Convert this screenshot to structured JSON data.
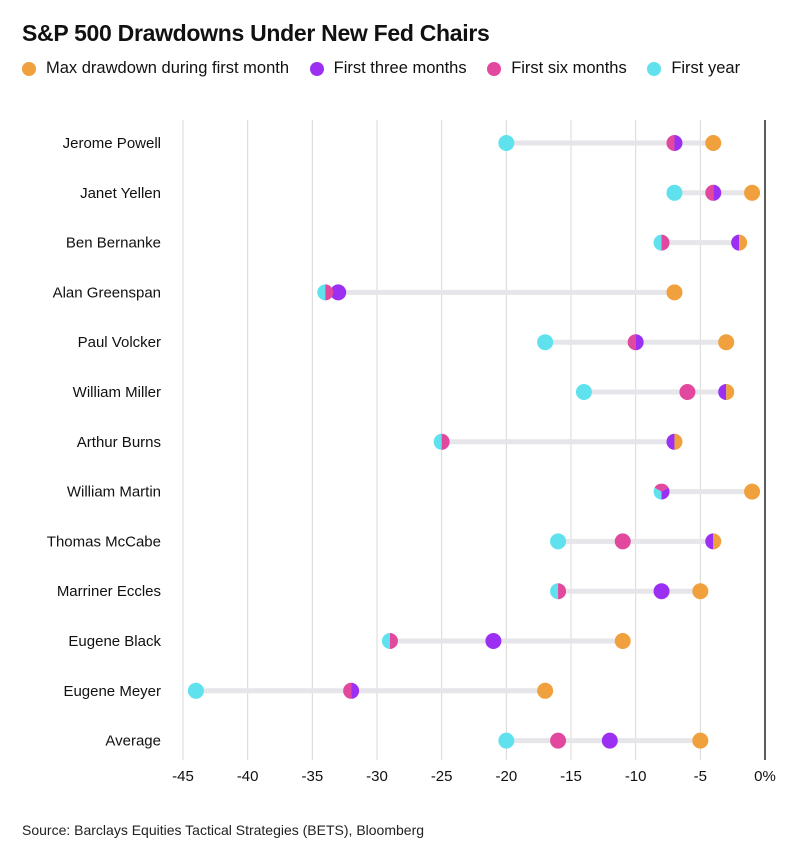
{
  "chart_data": {
    "type": "dot-range",
    "title": "S&P 500 Drawdowns Under New Fed Chairs",
    "xlim": [
      -45,
      0
    ],
    "xticks": [
      -45,
      -40,
      -35,
      -30,
      -25,
      -20,
      -15,
      -10,
      -5,
      0
    ],
    "xtick_labels": [
      "-45",
      "-40",
      "-35",
      "-30",
      "-25",
      "-20",
      "-15",
      "-10",
      "-5",
      "0%"
    ],
    "grid": "vertical",
    "legend_placement": "top",
    "categories": [
      "Jerome Powell",
      "Janet Yellen",
      "Ben Bernanke",
      "Alan Greenspan",
      "Paul Volcker",
      "William Miller",
      "Arthur Burns",
      "William Martin",
      "Thomas McCabe",
      "Marriner Eccles",
      "Eugene Black",
      "Eugene Meyer",
      "Average"
    ],
    "series": [
      {
        "name": "Max drawdown during first month",
        "color": "#f0a03c",
        "values": [
          -4,
          -1,
          -2,
          -7,
          -3,
          -3,
          -7,
          -1,
          -4,
          -5,
          -11,
          -17,
          -5
        ]
      },
      {
        "name": "First three months",
        "color": "#9b30f2",
        "values": [
          -7,
          -4,
          -2,
          -33,
          -10,
          -3,
          -7,
          -8,
          -4,
          -8,
          -21,
          -32,
          -12
        ]
      },
      {
        "name": "First six months",
        "color": "#e2489e",
        "values": [
          -7,
          -4,
          -8,
          -34,
          -10,
          -6,
          -25,
          -8,
          -11,
          -16,
          -29,
          -32,
          -16
        ]
      },
      {
        "name": "First year",
        "color": "#5fe2ee",
        "values": [
          -20,
          -7,
          -8,
          -34,
          -17,
          -14,
          -25,
          -8,
          -16,
          -16,
          -29,
          -44,
          -20
        ]
      }
    ]
  },
  "source": "Source: Barclays Equities Tactical Strategies (BETS), Bloomberg"
}
